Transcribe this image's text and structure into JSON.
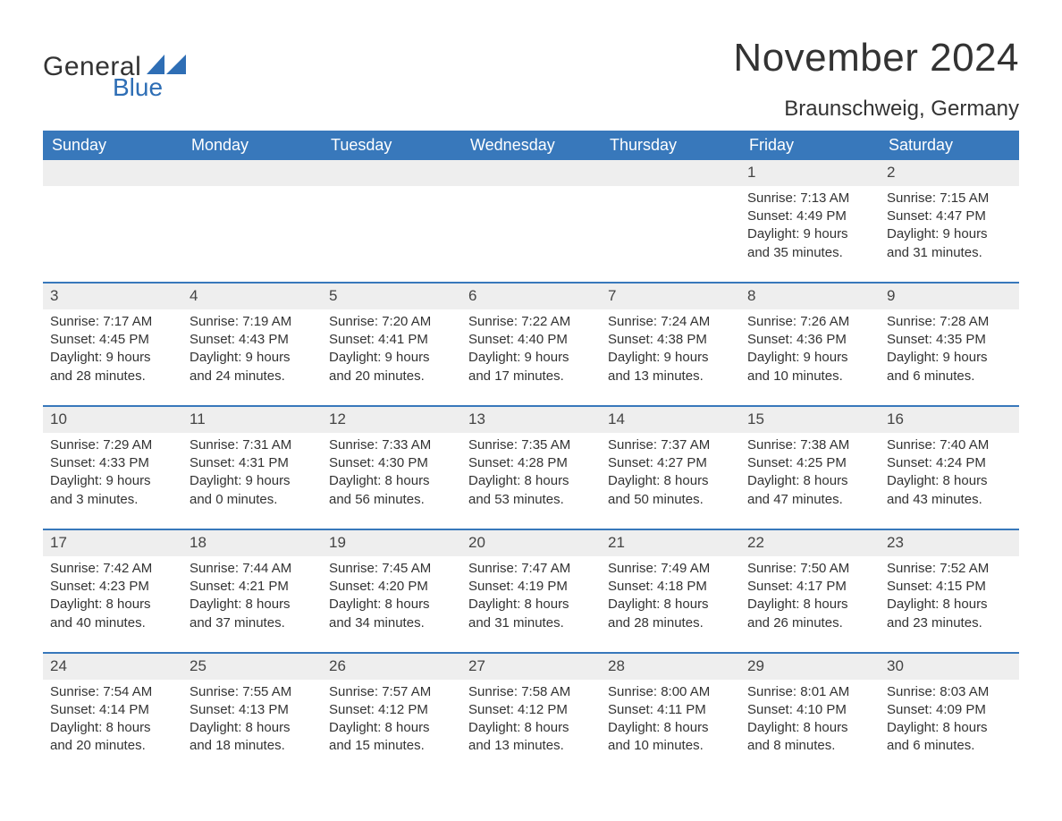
{
  "logo": {
    "general": "General",
    "blue": "Blue",
    "shape_color": "#2e6eb5"
  },
  "title": "November 2024",
  "location": "Braunschweig, Germany",
  "colors": {
    "header_bg": "#3878bb",
    "header_text": "#ffffff",
    "daynum_bg": "#eeeeee",
    "border_top": "#3878bb",
    "text": "#333333",
    "background": "#ffffff"
  },
  "fonts": {
    "title_size_pt": 33,
    "location_size_pt": 18,
    "weekday_size_pt": 14,
    "body_size_pt": 11
  },
  "weekdays": [
    "Sunday",
    "Monday",
    "Tuesday",
    "Wednesday",
    "Thursday",
    "Friday",
    "Saturday"
  ],
  "weeks": [
    [
      null,
      null,
      null,
      null,
      null,
      {
        "n": "1",
        "sunrise": "Sunrise: 7:13 AM",
        "sunset": "Sunset: 4:49 PM",
        "dl1": "Daylight: 9 hours",
        "dl2": "and 35 minutes."
      },
      {
        "n": "2",
        "sunrise": "Sunrise: 7:15 AM",
        "sunset": "Sunset: 4:47 PM",
        "dl1": "Daylight: 9 hours",
        "dl2": "and 31 minutes."
      }
    ],
    [
      {
        "n": "3",
        "sunrise": "Sunrise: 7:17 AM",
        "sunset": "Sunset: 4:45 PM",
        "dl1": "Daylight: 9 hours",
        "dl2": "and 28 minutes."
      },
      {
        "n": "4",
        "sunrise": "Sunrise: 7:19 AM",
        "sunset": "Sunset: 4:43 PM",
        "dl1": "Daylight: 9 hours",
        "dl2": "and 24 minutes."
      },
      {
        "n": "5",
        "sunrise": "Sunrise: 7:20 AM",
        "sunset": "Sunset: 4:41 PM",
        "dl1": "Daylight: 9 hours",
        "dl2": "and 20 minutes."
      },
      {
        "n": "6",
        "sunrise": "Sunrise: 7:22 AM",
        "sunset": "Sunset: 4:40 PM",
        "dl1": "Daylight: 9 hours",
        "dl2": "and 17 minutes."
      },
      {
        "n": "7",
        "sunrise": "Sunrise: 7:24 AM",
        "sunset": "Sunset: 4:38 PM",
        "dl1": "Daylight: 9 hours",
        "dl2": "and 13 minutes."
      },
      {
        "n": "8",
        "sunrise": "Sunrise: 7:26 AM",
        "sunset": "Sunset: 4:36 PM",
        "dl1": "Daylight: 9 hours",
        "dl2": "and 10 minutes."
      },
      {
        "n": "9",
        "sunrise": "Sunrise: 7:28 AM",
        "sunset": "Sunset: 4:35 PM",
        "dl1": "Daylight: 9 hours",
        "dl2": "and 6 minutes."
      }
    ],
    [
      {
        "n": "10",
        "sunrise": "Sunrise: 7:29 AM",
        "sunset": "Sunset: 4:33 PM",
        "dl1": "Daylight: 9 hours",
        "dl2": "and 3 minutes."
      },
      {
        "n": "11",
        "sunrise": "Sunrise: 7:31 AM",
        "sunset": "Sunset: 4:31 PM",
        "dl1": "Daylight: 9 hours",
        "dl2": "and 0 minutes."
      },
      {
        "n": "12",
        "sunrise": "Sunrise: 7:33 AM",
        "sunset": "Sunset: 4:30 PM",
        "dl1": "Daylight: 8 hours",
        "dl2": "and 56 minutes."
      },
      {
        "n": "13",
        "sunrise": "Sunrise: 7:35 AM",
        "sunset": "Sunset: 4:28 PM",
        "dl1": "Daylight: 8 hours",
        "dl2": "and 53 minutes."
      },
      {
        "n": "14",
        "sunrise": "Sunrise: 7:37 AM",
        "sunset": "Sunset: 4:27 PM",
        "dl1": "Daylight: 8 hours",
        "dl2": "and 50 minutes."
      },
      {
        "n": "15",
        "sunrise": "Sunrise: 7:38 AM",
        "sunset": "Sunset: 4:25 PM",
        "dl1": "Daylight: 8 hours",
        "dl2": "and 47 minutes."
      },
      {
        "n": "16",
        "sunrise": "Sunrise: 7:40 AM",
        "sunset": "Sunset: 4:24 PM",
        "dl1": "Daylight: 8 hours",
        "dl2": "and 43 minutes."
      }
    ],
    [
      {
        "n": "17",
        "sunrise": "Sunrise: 7:42 AM",
        "sunset": "Sunset: 4:23 PM",
        "dl1": "Daylight: 8 hours",
        "dl2": "and 40 minutes."
      },
      {
        "n": "18",
        "sunrise": "Sunrise: 7:44 AM",
        "sunset": "Sunset: 4:21 PM",
        "dl1": "Daylight: 8 hours",
        "dl2": "and 37 minutes."
      },
      {
        "n": "19",
        "sunrise": "Sunrise: 7:45 AM",
        "sunset": "Sunset: 4:20 PM",
        "dl1": "Daylight: 8 hours",
        "dl2": "and 34 minutes."
      },
      {
        "n": "20",
        "sunrise": "Sunrise: 7:47 AM",
        "sunset": "Sunset: 4:19 PM",
        "dl1": "Daylight: 8 hours",
        "dl2": "and 31 minutes."
      },
      {
        "n": "21",
        "sunrise": "Sunrise: 7:49 AM",
        "sunset": "Sunset: 4:18 PM",
        "dl1": "Daylight: 8 hours",
        "dl2": "and 28 minutes."
      },
      {
        "n": "22",
        "sunrise": "Sunrise: 7:50 AM",
        "sunset": "Sunset: 4:17 PM",
        "dl1": "Daylight: 8 hours",
        "dl2": "and 26 minutes."
      },
      {
        "n": "23",
        "sunrise": "Sunrise: 7:52 AM",
        "sunset": "Sunset: 4:15 PM",
        "dl1": "Daylight: 8 hours",
        "dl2": "and 23 minutes."
      }
    ],
    [
      {
        "n": "24",
        "sunrise": "Sunrise: 7:54 AM",
        "sunset": "Sunset: 4:14 PM",
        "dl1": "Daylight: 8 hours",
        "dl2": "and 20 minutes."
      },
      {
        "n": "25",
        "sunrise": "Sunrise: 7:55 AM",
        "sunset": "Sunset: 4:13 PM",
        "dl1": "Daylight: 8 hours",
        "dl2": "and 18 minutes."
      },
      {
        "n": "26",
        "sunrise": "Sunrise: 7:57 AM",
        "sunset": "Sunset: 4:12 PM",
        "dl1": "Daylight: 8 hours",
        "dl2": "and 15 minutes."
      },
      {
        "n": "27",
        "sunrise": "Sunrise: 7:58 AM",
        "sunset": "Sunset: 4:12 PM",
        "dl1": "Daylight: 8 hours",
        "dl2": "and 13 minutes."
      },
      {
        "n": "28",
        "sunrise": "Sunrise: 8:00 AM",
        "sunset": "Sunset: 4:11 PM",
        "dl1": "Daylight: 8 hours",
        "dl2": "and 10 minutes."
      },
      {
        "n": "29",
        "sunrise": "Sunrise: 8:01 AM",
        "sunset": "Sunset: 4:10 PM",
        "dl1": "Daylight: 8 hours",
        "dl2": "and 8 minutes."
      },
      {
        "n": "30",
        "sunrise": "Sunrise: 8:03 AM",
        "sunset": "Sunset: 4:09 PM",
        "dl1": "Daylight: 8 hours",
        "dl2": "and 6 minutes."
      }
    ]
  ]
}
